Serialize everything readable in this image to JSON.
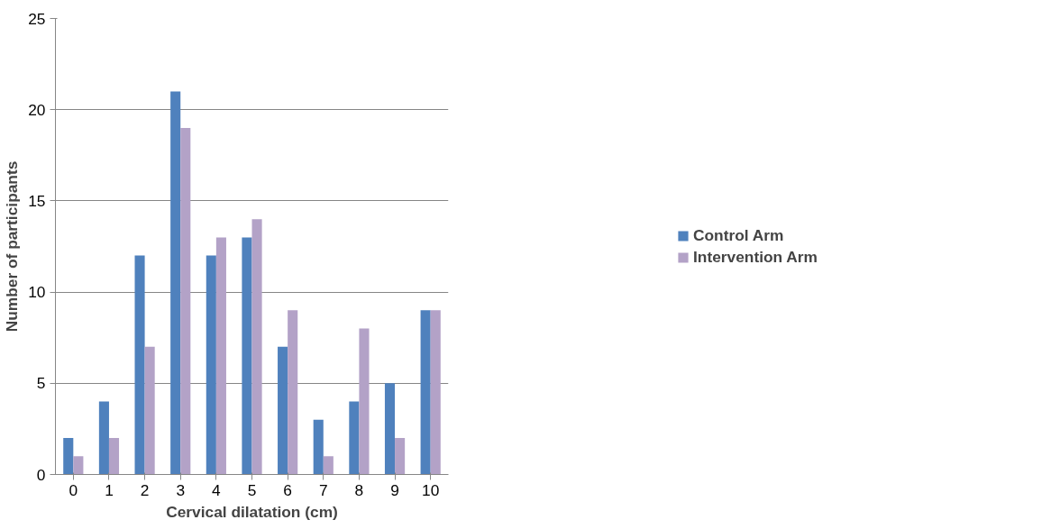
{
  "chart_data": {
    "type": "bar",
    "xlabel": "Cervical dilatation (cm)",
    "ylabel": "Number of participants",
    "categories": [
      "0",
      "1",
      "2",
      "3",
      "4",
      "5",
      "6",
      "7",
      "8",
      "9",
      "10"
    ],
    "series": [
      {
        "name": "Control Arm",
        "color": "#4f81bd",
        "values": [
          2,
          4,
          12,
          21,
          12,
          13,
          7,
          3,
          4,
          5,
          9
        ]
      },
      {
        "name": "Intervention Arm",
        "color": "#b3a2c7",
        "values": [
          1,
          2,
          7,
          19,
          13,
          14,
          9,
          1,
          8,
          2,
          9
        ]
      }
    ],
    "ylim": [
      0,
      25
    ],
    "yticks": [
      0,
      5,
      10,
      15,
      20,
      25
    ],
    "grid": "y",
    "legend": "right"
  }
}
